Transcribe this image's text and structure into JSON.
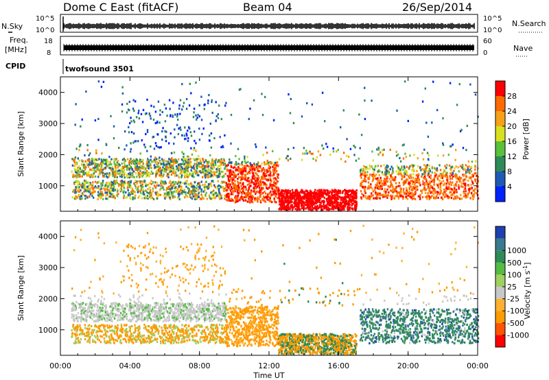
{
  "header": {
    "station": "Dome C East (fitACF)",
    "beam": "Beam 04",
    "date": "26/Sep/2014"
  },
  "side_labels": {
    "nsky": "N.Sky",
    "nsearch": "N.Search",
    "freq_line1": "Freq.",
    "freq_line2": "[MHz]",
    "nave": "Nave",
    "cpid": "CPID",
    "nsky_top": "10^5",
    "nsky_bottom": "10^0",
    "nsearch_top": "10^5",
    "nsearch_bottom": "10^0",
    "freq_top": "18",
    "freq_bottom": "8",
    "nave_top": "60",
    "nave_bottom": "0"
  },
  "cpid_text": "twofsound 3501",
  "colors": {
    "power": [
      "#0022ff",
      "#1e5ab4",
      "#2e8b57",
      "#5bc03b",
      "#d9e020",
      "#f7a11a",
      "#ff6a00",
      "#ff0000"
    ],
    "velocity": [
      "#ff0000",
      "#ff5500",
      "#ff9a00",
      "#ffb030",
      "#c8c8c8",
      "#a0d060",
      "#55bb44",
      "#2e8b57",
      "#3a7a8c",
      "#1e40b0"
    ]
  },
  "chart_data": [
    {
      "type": "heatmap",
      "name": "Power",
      "xlabel": "",
      "ylabel": "Slant Range [km]",
      "x_range": [
        "00:00",
        "24:00"
      ],
      "ylim": [
        180,
        4500
      ],
      "yticks": [
        "1000",
        "2000",
        "3000",
        "4000"
      ],
      "colorbar_label": "Power [dB]",
      "colorbar_ticks": [
        "4",
        "8",
        "12",
        "16",
        "20",
        "24",
        "28"
      ],
      "colorbar_range": [
        0,
        32
      ]
    },
    {
      "type": "heatmap",
      "name": "Velocity",
      "xlabel": "Time UT",
      "ylabel": "Slant Range [km]",
      "x_range": [
        "00:00",
        "24:00"
      ],
      "xticks": [
        "00:00",
        "04:00",
        "08:00",
        "12:00",
        "16:00",
        "20:00",
        "00:00"
      ],
      "ylim": [
        180,
        4500
      ],
      "yticks": [
        "1000",
        "2000",
        "3000",
        "4000"
      ],
      "colorbar_label": "Velocity [m s^-1]",
      "colorbar_ticks": [
        "-1000",
        "-500",
        "-100",
        "-25",
        "25",
        "100",
        "500",
        "1000"
      ]
    }
  ]
}
